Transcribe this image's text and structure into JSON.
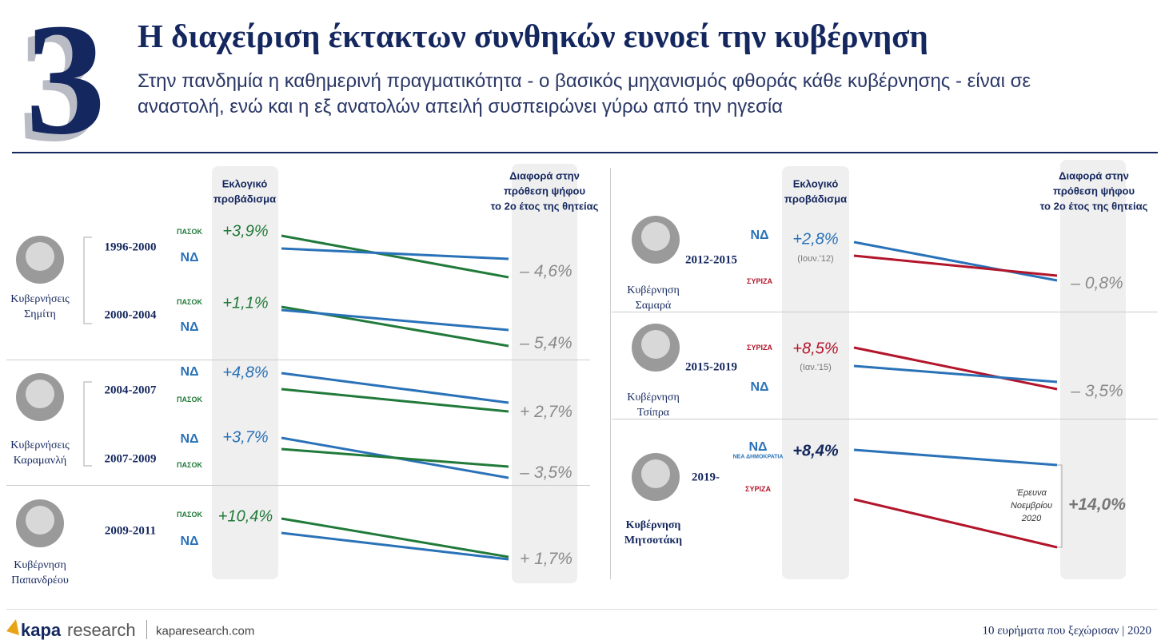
{
  "header": {
    "number": "3",
    "title": "Η διαχείριση έκτακτων συνθηκών ευνοεί την κυβέρνηση",
    "subtitle": [
      "Στην πανδημία η καθημερινή πραγματικότητα - ο βασικός μηχανισμός φθοράς κάθε κυβέρνησης - είναι σε",
      "αναστολή, ενώ και η εξ ανατολών απειλή συσπειρώνει γύρω από την ηγεσία"
    ]
  },
  "left": {
    "lead_header": [
      "Εκλογικό",
      "προβάδισμα"
    ],
    "diff_header": [
      "Διαφορά στην",
      "πρόθεση ψήφου",
      "το 2ο έτος της θητείας"
    ],
    "groups": [
      {
        "label": [
          "Κυβερνήσεις",
          "Σημίτη"
        ],
        "terms": [
          {
            "years": "1996-2000",
            "parties": [
              {
                "name": "ΠΑΣΟΚ",
                "color": "#217a3a"
              },
              {
                "name": "ΝΔ",
                "color": "#2a72b8"
              }
            ],
            "lead": "+3,9%",
            "diff": "– 4,6%"
          },
          {
            "years": "2000-2004",
            "parties": [
              {
                "name": "ΠΑΣΟΚ",
                "color": "#217a3a"
              },
              {
                "name": "ΝΔ",
                "color": "#2a72b8"
              }
            ],
            "lead": "+1,1%",
            "diff": "– 5,4%"
          }
        ]
      },
      {
        "label": [
          "Κυβερνήσεις",
          "Καραμανλή"
        ],
        "terms": [
          {
            "years": "2004-2007",
            "parties": [
              {
                "name": "ΝΔ",
                "color": "#2a72b8"
              },
              {
                "name": "ΠΑΣΟΚ",
                "color": "#217a3a"
              }
            ],
            "lead": "+4,8%",
            "diff": "+ 2,7%"
          },
          {
            "years": "2007-2009",
            "parties": [
              {
                "name": "ΝΔ",
                "color": "#2a72b8"
              },
              {
                "name": "ΠΑΣΟΚ",
                "color": "#217a3a"
              }
            ],
            "lead": "+3,7%",
            "diff": "– 3,5%"
          }
        ]
      },
      {
        "label": [
          "Κυβέρνηση",
          "Παπανδρέου"
        ],
        "terms": [
          {
            "years": "2009-2011",
            "parties": [
              {
                "name": "ΠΑΣΟΚ",
                "color": "#217a3a"
              },
              {
                "name": "ΝΔ",
                "color": "#2a72b8"
              }
            ],
            "lead": "+10,4%",
            "diff": "+ 1,7%"
          }
        ]
      }
    ]
  },
  "right": {
    "lead_header": [
      "Εκλογικό",
      "προβάδισμα"
    ],
    "diff_header": [
      "Διαφορά στην",
      "πρόθεση ψήφου",
      "το 2ο έτος της θητείας"
    ],
    "groups": [
      {
        "label": [
          "Κυβέρνηση",
          "Σαμαρά"
        ],
        "terms": [
          {
            "years": "2012-2015",
            "parties": [
              {
                "name": "ΝΔ",
                "color": "#2a72b8"
              },
              {
                "name": "ΣΥΡΙΖΑ",
                "color": "#b3152b"
              }
            ],
            "lead": "+2,8%",
            "lead_note": "(Ιουν.'12)",
            "diff": "– 0,8%"
          }
        ]
      },
      {
        "label": [
          "Κυβέρνηση",
          "Τσίπρα"
        ],
        "terms": [
          {
            "years": "2015-2019",
            "parties": [
              {
                "name": "ΣΥΡΙΖΑ",
                "color": "#b3152b"
              },
              {
                "name": "ΝΔ",
                "color": "#2a72b8"
              }
            ],
            "lead": "+8,5%",
            "lead_note": "(Ιαν.'15)",
            "diff": "– 3,5%"
          }
        ]
      },
      {
        "label": [
          "Κυβέρνηση",
          "Μητσοτάκη"
        ],
        "terms": [
          {
            "years": "2019-",
            "parties": [
              {
                "name": "ΝΔ",
                "caption": "ΝΕΑ ΔΗΜΟΚΡΑΤΙΑ",
                "color": "#2a72b8"
              },
              {
                "name": "ΣΥΡΙΖΑ",
                "color": "#b3152b"
              }
            ],
            "lead": "+8,4%",
            "diff": "+14,0%",
            "diff_note": [
              "Έρευνα",
              "Νοεμβρίου",
              "2020"
            ]
          }
        ]
      }
    ]
  },
  "footer": {
    "brand": [
      "kapa",
      "research"
    ],
    "site": "kaparesearch.com",
    "right": "10 ευρήματα που ξεχώρισαν | 2020"
  }
}
